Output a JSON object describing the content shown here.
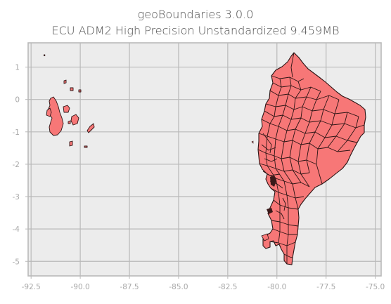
{
  "title": "geoBoundaries 3.0.0",
  "subtitle": "ECU ADM2 High Precision Unstandardized 9.459MB",
  "map": {
    "fill_color": "#f77777",
    "edge_color": "#2b1414",
    "background_color": "#ececec",
    "grid_color": "#b9b9b9",
    "grid": true,
    "x_range": [
      -92.65,
      -74.7
    ],
    "y_range": [
      -5.45,
      1.75
    ]
  },
  "axes": {
    "x_ticks": [
      {
        "value": -92.5,
        "label": "-92.5"
      },
      {
        "value": -90.0,
        "label": "-90.0"
      },
      {
        "value": -87.5,
        "label": "-87.5"
      },
      {
        "value": -85.0,
        "label": "-85.0"
      },
      {
        "value": -82.5,
        "label": "-82.5"
      },
      {
        "value": -80.0,
        "label": "-80.0"
      },
      {
        "value": -77.5,
        "label": "-77.5"
      },
      {
        "value": -75.0,
        "label": "-75.0"
      }
    ],
    "y_ticks": [
      {
        "value": 1,
        "label": "1"
      },
      {
        "value": 0,
        "label": "0"
      },
      {
        "value": -1,
        "label": "-1"
      },
      {
        "value": -2,
        "label": "-2"
      },
      {
        "value": -3,
        "label": "-3"
      },
      {
        "value": -4,
        "label": "-4"
      },
      {
        "value": -5,
        "label": "-5"
      }
    ]
  }
}
